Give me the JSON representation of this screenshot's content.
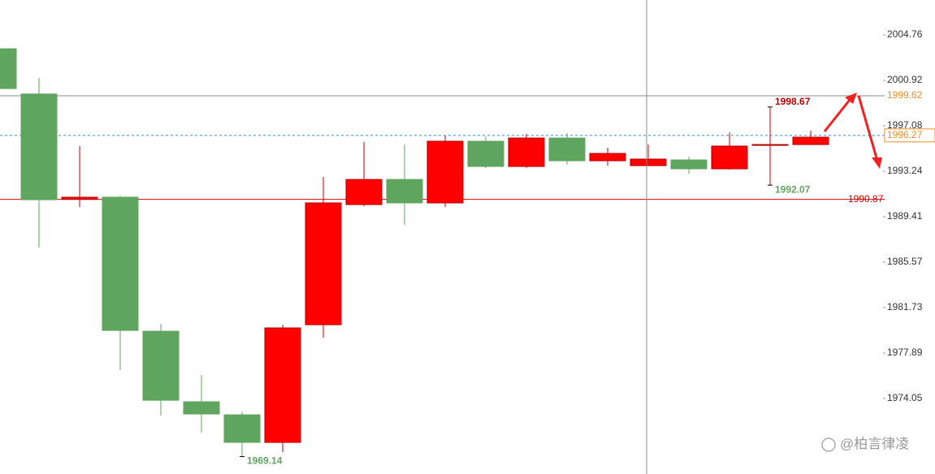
{
  "chart_data": {
    "type": "candlestick",
    "open": [
      2003.59,
      1999.77,
      1990.87,
      1991.05,
      1979.73,
      1973.77,
      1972.67,
      1970.34,
      1980.28,
      1990.43,
      1992.55,
      1990.57,
      1995.78,
      1993.65,
      1996.05,
      1994.13,
      1993.72,
      1994.2,
      1993.45,
      1995.5,
      1995.5
    ],
    "high": [
      2003.59,
      2001.13,
      1995.37,
      1991.18,
      1980.35,
      1976.03,
      1972.94,
      1980.28,
      1992.76,
      1995.71,
      1995.5,
      1996.26,
      1996.19,
      1996.4,
      1996.46,
      1995.23,
      1995.5,
      1994.47,
      1996.53,
      1998.67,
      1996.67
    ],
    "low": [
      2000.23,
      1986.79,
      1990.22,
      1976.44,
      1972.6,
      1971.16,
      1969.14,
      1969.51,
      1979.18,
      1990.29,
      1988.71,
      1990.22,
      1993.51,
      1993.51,
      1993.79,
      1993.72,
      1993.72,
      1993.03,
      1993.38,
      1992.07,
      1995.5
    ],
    "close": [
      2000.23,
      1990.84,
      1991.05,
      1979.8,
      1973.9,
      1972.74,
      1970.34,
      1980.01,
      1990.57,
      1992.55,
      1990.57,
      1995.78,
      1993.65,
      1996.05,
      1994.13,
      1994.75,
      1994.27,
      1993.45,
      1995.37,
      1995.5,
      1996.12
    ],
    "up_color": "#ff0000",
    "down_color": "#5fa55f",
    "ylim": [
      1967.67,
      2007.71
    ],
    "yticks": [
      1974.05,
      1977.89,
      1981.73,
      1985.57,
      1989.41,
      1993.24,
      1997.08,
      2000.92,
      2004.76
    ],
    "reference_lines": [
      {
        "value": 1999.62,
        "color": "#8a8a8a",
        "label_color": "#f08c1e"
      },
      {
        "value": 1996.27,
        "color": "#3a8fd0",
        "label_color": "#f08c1e",
        "dashed": true,
        "boxed": true
      },
      {
        "value": 1990.87,
        "color": "#e00000",
        "label_color": "#d00000"
      }
    ],
    "point_labels": [
      {
        "field": "high",
        "index": 19,
        "color": "#c00000"
      },
      {
        "field": "low",
        "index": 19,
        "color": "#5fa55f"
      },
      {
        "field": "low",
        "index": 6,
        "color": "#5fa55f"
      }
    ],
    "watermark": "@柏言律凌"
  }
}
